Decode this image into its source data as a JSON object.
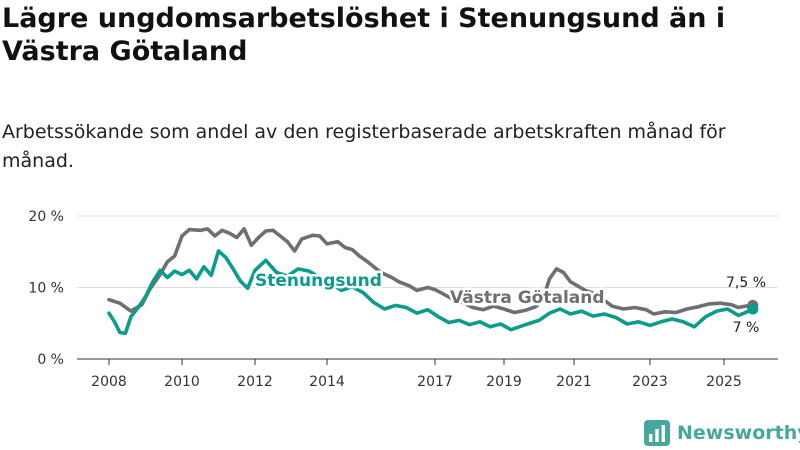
{
  "chart_data": {
    "type": "line",
    "title": "Lägre ungdomsarbetslöshet i Stenungsund än i Västra Götaland",
    "subtitle": "Arbetssökande som andel av den registerbaserade arbetskraften månad för månad.",
    "xlabel": "",
    "ylabel": "",
    "ylim": [
      0,
      20
    ],
    "y_ticks": [
      "0 %",
      "10 %",
      "20 %"
    ],
    "x_ticks": [
      "2008",
      "2010",
      "2012",
      "2014",
      "2017",
      "2019",
      "2021",
      "2023",
      "2025"
    ],
    "grid": true,
    "series": [
      {
        "name": "Västra Götaland",
        "color": "#6e6e73",
        "end_label": "7,5 %",
        "points": [
          [
            2008.0,
            8.3
          ],
          [
            2008.3,
            7.8
          ],
          [
            2008.6,
            6.7
          ],
          [
            2008.9,
            7.6
          ],
          [
            2009.1,
            9.6
          ],
          [
            2009.4,
            11.8
          ],
          [
            2009.6,
            13.6
          ],
          [
            2009.8,
            14.4
          ],
          [
            2010.0,
            17.2
          ],
          [
            2010.2,
            18.1
          ],
          [
            2010.5,
            18.0
          ],
          [
            2010.7,
            18.2
          ],
          [
            2010.9,
            17.2
          ],
          [
            2011.1,
            18.0
          ],
          [
            2011.3,
            17.6
          ],
          [
            2011.5,
            17.0
          ],
          [
            2011.7,
            18.2
          ],
          [
            2011.9,
            15.9
          ],
          [
            2012.1,
            17.0
          ],
          [
            2012.3,
            17.9
          ],
          [
            2012.5,
            18.0
          ],
          [
            2012.7,
            17.2
          ],
          [
            2012.9,
            16.4
          ],
          [
            2013.1,
            15.1
          ],
          [
            2013.3,
            16.8
          ],
          [
            2013.6,
            17.3
          ],
          [
            2013.8,
            17.2
          ],
          [
            2014.0,
            16.1
          ],
          [
            2014.3,
            16.4
          ],
          [
            2014.5,
            15.6
          ],
          [
            2014.7,
            15.3
          ],
          [
            2014.9,
            14.4
          ],
          [
            2015.1,
            13.7
          ],
          [
            2015.5,
            12.1
          ],
          [
            2015.8,
            11.4
          ],
          [
            2016.0,
            10.8
          ],
          [
            2016.3,
            10.2
          ],
          [
            2016.5,
            9.6
          ],
          [
            2016.8,
            10.0
          ],
          [
            2017.0,
            9.7
          ],
          [
            2017.2,
            9.2
          ],
          [
            2017.5,
            8.4
          ],
          [
            2017.8,
            7.9
          ],
          [
            2018.1,
            7.2
          ],
          [
            2018.4,
            6.9
          ],
          [
            2018.7,
            7.4
          ],
          [
            2019.0,
            7.0
          ],
          [
            2019.3,
            6.5
          ],
          [
            2019.6,
            6.8
          ],
          [
            2019.9,
            7.3
          ],
          [
            2020.1,
            8.2
          ],
          [
            2020.3,
            11.2
          ],
          [
            2020.5,
            12.6
          ],
          [
            2020.7,
            12.1
          ],
          [
            2020.9,
            10.8
          ],
          [
            2021.1,
            10.2
          ],
          [
            2021.3,
            9.6
          ],
          [
            2021.5,
            9.2
          ],
          [
            2021.8,
            8.2
          ],
          [
            2022.0,
            7.4
          ],
          [
            2022.3,
            7.0
          ],
          [
            2022.6,
            7.2
          ],
          [
            2022.9,
            6.9
          ],
          [
            2023.1,
            6.3
          ],
          [
            2023.4,
            6.6
          ],
          [
            2023.7,
            6.5
          ],
          [
            2024.0,
            7.0
          ],
          [
            2024.3,
            7.3
          ],
          [
            2024.6,
            7.7
          ],
          [
            2024.9,
            7.8
          ],
          [
            2025.2,
            7.6
          ],
          [
            2025.4,
            7.2
          ],
          [
            2025.6,
            7.4
          ],
          [
            2025.8,
            7.5
          ]
        ]
      },
      {
        "name": "Stenungsund",
        "color": "#0c9c8c",
        "end_label": "7 %",
        "points": [
          [
            2008.0,
            6.4
          ],
          [
            2008.15,
            5.2
          ],
          [
            2008.3,
            3.7
          ],
          [
            2008.45,
            3.6
          ],
          [
            2008.6,
            5.9
          ],
          [
            2008.8,
            7.2
          ],
          [
            2009.0,
            8.7
          ],
          [
            2009.2,
            10.8
          ],
          [
            2009.4,
            12.4
          ],
          [
            2009.6,
            11.4
          ],
          [
            2009.8,
            12.3
          ],
          [
            2010.0,
            11.8
          ],
          [
            2010.2,
            12.4
          ],
          [
            2010.4,
            11.2
          ],
          [
            2010.6,
            12.9
          ],
          [
            2010.8,
            11.7
          ],
          [
            2011.0,
            15.1
          ],
          [
            2011.2,
            14.2
          ],
          [
            2011.4,
            12.6
          ],
          [
            2011.6,
            10.9
          ],
          [
            2011.8,
            9.9
          ],
          [
            2012.0,
            12.4
          ],
          [
            2012.3,
            13.8
          ],
          [
            2012.6,
            12.1
          ],
          [
            2012.9,
            11.6
          ],
          [
            2013.2,
            12.6
          ],
          [
            2013.5,
            12.3
          ],
          [
            2013.8,
            11.4
          ],
          [
            2014.1,
            10.6
          ],
          [
            2014.4,
            9.6
          ],
          [
            2014.7,
            10.1
          ],
          [
            2015.0,
            9.3
          ],
          [
            2015.3,
            7.9
          ],
          [
            2015.6,
            7.0
          ],
          [
            2015.9,
            7.5
          ],
          [
            2016.2,
            7.2
          ],
          [
            2016.5,
            6.4
          ],
          [
            2016.8,
            6.9
          ],
          [
            2017.1,
            5.9
          ],
          [
            2017.4,
            5.1
          ],
          [
            2017.7,
            5.4
          ],
          [
            2018.0,
            4.8
          ],
          [
            2018.3,
            5.2
          ],
          [
            2018.6,
            4.5
          ],
          [
            2018.9,
            4.9
          ],
          [
            2019.2,
            4.1
          ],
          [
            2019.5,
            4.6
          ],
          [
            2019.8,
            5.1
          ],
          [
            2020.0,
            5.4
          ],
          [
            2020.3,
            6.4
          ],
          [
            2020.6,
            7.0
          ],
          [
            2020.9,
            6.3
          ],
          [
            2021.2,
            6.7
          ],
          [
            2021.5,
            6.0
          ],
          [
            2021.8,
            6.3
          ],
          [
            2022.1,
            5.8
          ],
          [
            2022.4,
            4.9
          ],
          [
            2022.7,
            5.2
          ],
          [
            2023.0,
            4.7
          ],
          [
            2023.3,
            5.2
          ],
          [
            2023.6,
            5.6
          ],
          [
            2023.9,
            5.2
          ],
          [
            2024.2,
            4.5
          ],
          [
            2024.5,
            5.9
          ],
          [
            2024.8,
            6.7
          ],
          [
            2025.1,
            7.0
          ],
          [
            2025.4,
            6.1
          ],
          [
            2025.6,
            6.5
          ],
          [
            2025.8,
            7.0
          ]
        ]
      }
    ]
  },
  "brand": {
    "name": "Newsworthy",
    "color": "#46a89c"
  }
}
